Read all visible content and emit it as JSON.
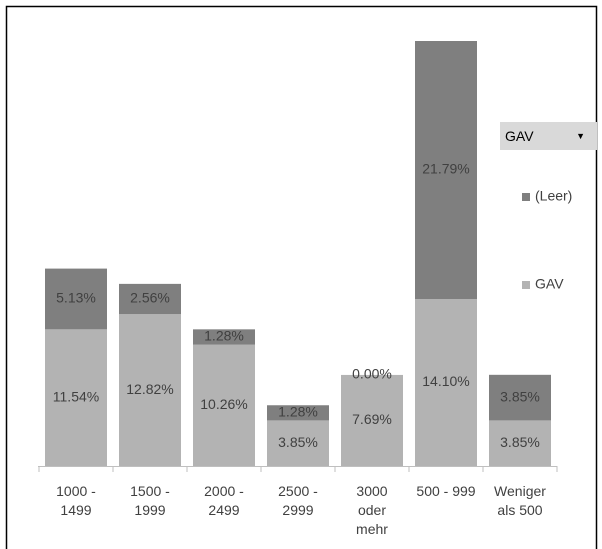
{
  "chart_data": {
    "type": "stacked_bar",
    "categories": [
      "1000 -\n1499",
      "1500 -\n1999",
      "2000 -\n2499",
      "2500 -\n2999",
      "3000\noder\nmehr",
      "500 - 999",
      "Weniger\nals 500"
    ],
    "filter_button": "GAV",
    "series": [
      {
        "name": "GAV",
        "color": "#b3b3b3",
        "values": [
          11.54,
          12.82,
          10.26,
          3.85,
          7.69,
          14.1,
          3.85
        ],
        "value_labels": [
          "11.54%",
          "12.82%",
          "10.26%",
          "3.85%",
          "7.69%",
          "14.10%",
          "3.85%"
        ]
      },
      {
        "name": "(Leer)",
        "color": "#7f7f7f",
        "values": [
          5.13,
          2.56,
          1.28,
          1.28,
          0,
          21.79,
          3.85
        ],
        "value_labels": [
          "5.13%",
          "2.56%",
          "1.28%",
          "1.28%",
          "0.00%",
          "21.79%",
          "3.85%"
        ]
      }
    ]
  }
}
